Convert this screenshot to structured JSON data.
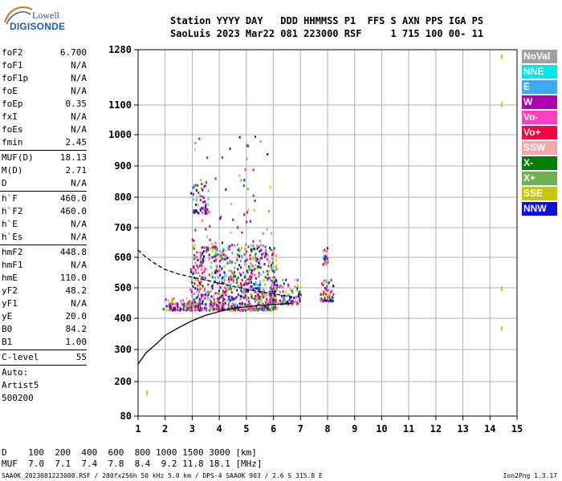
{
  "logo": {
    "line1": "Lowell",
    "line2": "DIGISONDE"
  },
  "header": {
    "line1": "Station YYYY DAY   DDD HHMMSS P1  FFS S AXN PPS IGA PS",
    "line2": "SaoLuis 2023 Mar22 081 223000 RSF     1 715 100 00- 11"
  },
  "params_group1": [
    {
      "name": "foF2",
      "value": "6.700"
    },
    {
      "name": "foF1",
      "value": "N/A"
    },
    {
      "name": "foF1p",
      "value": "N/A"
    },
    {
      "name": "foE",
      "value": "N/A"
    },
    {
      "name": "foEp",
      "value": "0.35"
    },
    {
      "name": "fxI",
      "value": "N/A"
    },
    {
      "name": "foEs",
      "value": "N/A"
    },
    {
      "name": "fmin",
      "value": "2.45"
    }
  ],
  "params_group2": [
    {
      "name": "MUF(D)",
      "value": "18.13"
    },
    {
      "name": "M(D)",
      "value": "2.71"
    },
    {
      "name": "D",
      "value": "N/A"
    }
  ],
  "params_group3": [
    {
      "name": "h`F",
      "value": "460.0"
    },
    {
      "name": "h`F2",
      "value": "460.0"
    },
    {
      "name": "h`E",
      "value": "N/A"
    },
    {
      "name": "h`Es",
      "value": "N/A"
    }
  ],
  "params_group4": [
    {
      "name": "hmF2",
      "value": "448.8"
    },
    {
      "name": "hmF1",
      "value": "N/A"
    },
    {
      "name": "hmE",
      "value": "110.0"
    },
    {
      "name": "yF2",
      "value": "48.2"
    },
    {
      "name": "yF1",
      "value": "N/A"
    },
    {
      "name": "yE",
      "value": "20.0"
    },
    {
      "name": "B0",
      "value": "84.2"
    },
    {
      "name": "B1",
      "value": "1.00"
    }
  ],
  "params_group5": [
    {
      "name": "C-level",
      "value": "55"
    }
  ],
  "params_text": [
    "Auto:",
    "Artist5",
    "500200"
  ],
  "legend": [
    {
      "label": "NoVal",
      "color": "#a0a0a0"
    },
    {
      "label": "NNE",
      "color": "#00e5ee"
    },
    {
      "label": "E",
      "color": "#3ea8f0"
    },
    {
      "label": "W",
      "color": "#b000b0"
    },
    {
      "label": "Vo-",
      "color": "#ff40c0"
    },
    {
      "label": "Vo+",
      "color": "#ff0040"
    },
    {
      "label": "SSW",
      "color": "#f0a8a8"
    },
    {
      "label": "X-",
      "color": "#008000"
    },
    {
      "label": "X+",
      "color": "#70b050"
    },
    {
      "label": "SSE",
      "color": "#c8c800"
    },
    {
      "label": "NNW",
      "color": "#1010d0"
    }
  ],
  "footer": {
    "d_line": "D    100  200  400  600  800 1000 1500 3000 [km]",
    "muf_line": "MUF  7.0  7.1  7.4  7.8  8.4  9.2 11.8 18.1 [MHz]",
    "file_line": "SAA0K_2023081223000.RSF / 280fx256h 50 kHz 5.0 km / DPS-4 SAA0K 903 / 2.6 S 315.8 E",
    "version": "Ion2Png 1.3.17"
  },
  "chart_data": {
    "type": "scatter",
    "title": "",
    "xlabel": "",
    "ylabel": "",
    "xlim": [
      1,
      15
    ],
    "ylim": [
      80,
      1280
    ],
    "x_ticks": [
      1,
      2,
      3,
      4,
      5,
      6,
      7,
      8,
      9,
      10,
      11,
      12,
      13,
      14,
      15
    ],
    "y_ticks": [
      80,
      200,
      300,
      400,
      500,
      600,
      700,
      800,
      900,
      1000,
      1100,
      1280
    ],
    "y_axis_scale": "nonlinear (virtual-height ionogram)",
    "grid": true,
    "series": [
      {
        "name": "",
        "line": "solid",
        "x": [
          1.0,
          1.3,
          1.7,
          2.0,
          2.5,
          3.0,
          3.5,
          4.0,
          4.5,
          5.0,
          5.5,
          6.0,
          6.5,
          6.7
        ],
        "y": [
          255,
          290,
          320,
          345,
          370,
          392,
          410,
          422,
          432,
          438,
          443,
          445,
          448,
          448.8
        ]
      },
      {
        "name": "",
        "line": "dashed",
        "x": [
          1.0,
          1.3,
          1.7,
          2.0,
          2.5,
          3.0,
          3.5,
          4.0,
          4.5,
          5.0,
          5.5,
          6.0,
          6.5,
          6.7
        ],
        "y": [
          625,
          600,
          575,
          560,
          545,
          535,
          525,
          515,
          505,
          495,
          487,
          480,
          473,
          470
        ]
      }
    ],
    "echo_clusters": [
      {
        "fmin": 1.9,
        "fmax": 3.0,
        "hmin": 430,
        "hmax": 470
      },
      {
        "fmin": 2.9,
        "fmax": 6.1,
        "hmin": 430,
        "hmax": 650
      },
      {
        "fmin": 3.0,
        "fmax": 3.6,
        "hmin": 750,
        "hmax": 850
      },
      {
        "fmin": 5.8,
        "fmax": 7.0,
        "hmin": 450,
        "hmax": 530
      },
      {
        "fmin": 7.7,
        "fmax": 8.2,
        "hmin": 460,
        "hmax": 530
      },
      {
        "fmin": 7.8,
        "fmax": 8.0,
        "hmin": 580,
        "hmax": 640
      }
    ]
  }
}
